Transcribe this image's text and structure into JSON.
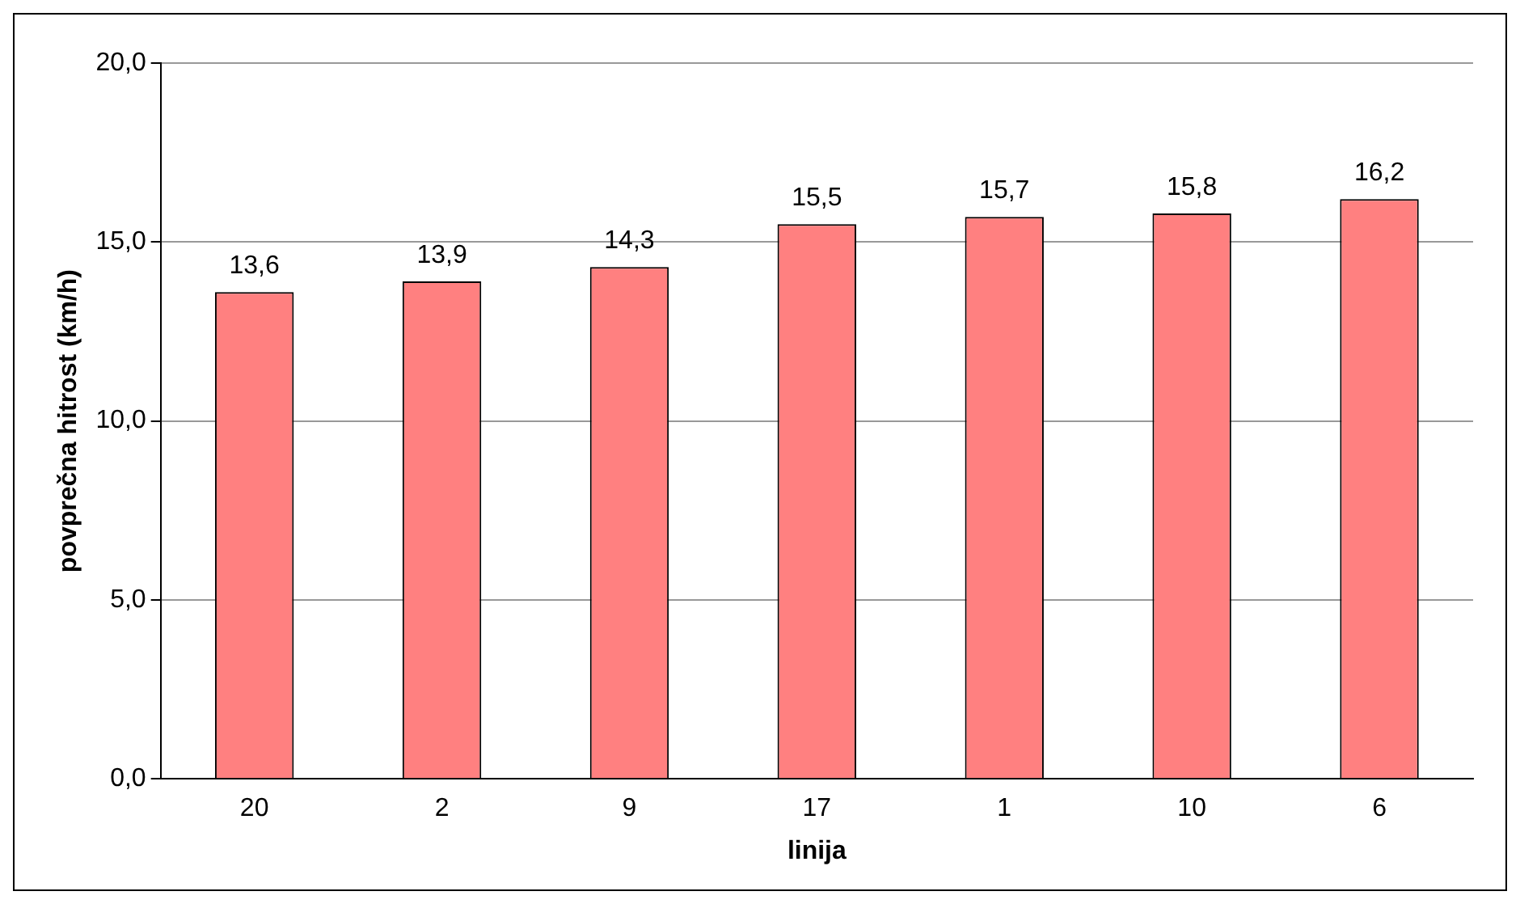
{
  "chart_data": {
    "type": "bar",
    "xlabel": "linija",
    "ylabel": "povprečna hitrost (km/h)",
    "categories": [
      "20",
      "2",
      "9",
      "17",
      "1",
      "10",
      "6"
    ],
    "values": [
      13.6,
      13.9,
      14.3,
      15.5,
      15.7,
      15.8,
      16.2
    ],
    "value_labels": [
      "13,6",
      "13,9",
      "14,3",
      "15,5",
      "15,7",
      "15,8",
      "16,2"
    ],
    "color": "#ff8080",
    "ylim": [
      0,
      20
    ],
    "yticks": [
      {
        "value": 0,
        "label": "0,0"
      },
      {
        "value": 5,
        "label": "5,0"
      },
      {
        "value": 10,
        "label": "10,0"
      },
      {
        "value": 15,
        "label": "15,0"
      },
      {
        "value": 20,
        "label": "20,0"
      }
    ],
    "grid": "y",
    "legend": false
  }
}
